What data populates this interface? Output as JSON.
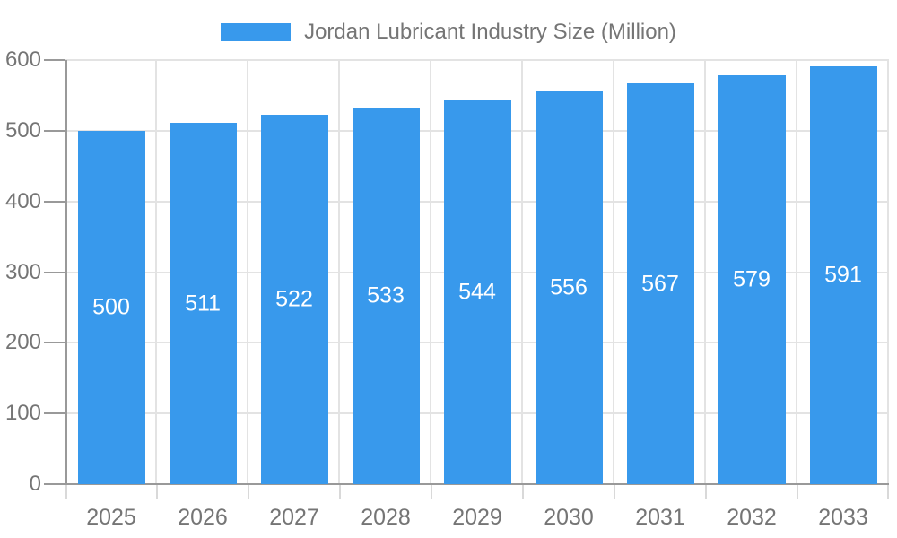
{
  "legend": {
    "label": "Jordan Lubricant Industry Size (Million)"
  },
  "chart_data": {
    "type": "bar",
    "title": "Jordan Lubricant Industry Size (Million)",
    "categories": [
      "2025",
      "2026",
      "2027",
      "2028",
      "2029",
      "2030",
      "2031",
      "2032",
      "2033"
    ],
    "values": [
      500,
      511,
      522,
      533,
      544,
      556,
      567,
      579,
      591
    ],
    "value_labels": [
      "500",
      "511",
      "522",
      "533",
      "544",
      "556",
      "567",
      "579",
      "591"
    ],
    "xlabel": "",
    "ylabel": "",
    "ylim": [
      0,
      600
    ],
    "yticks": [
      0,
      100,
      200,
      300,
      400,
      500,
      600
    ],
    "grid": true,
    "legend_position": "top",
    "colors": {
      "bar": "#3899EC",
      "grid": "#e3e3e3",
      "axis": "#999999",
      "category_tick": "#d9d9d9",
      "text": "#757575",
      "value_label": "#ffffff",
      "background": "#ffffff"
    }
  }
}
